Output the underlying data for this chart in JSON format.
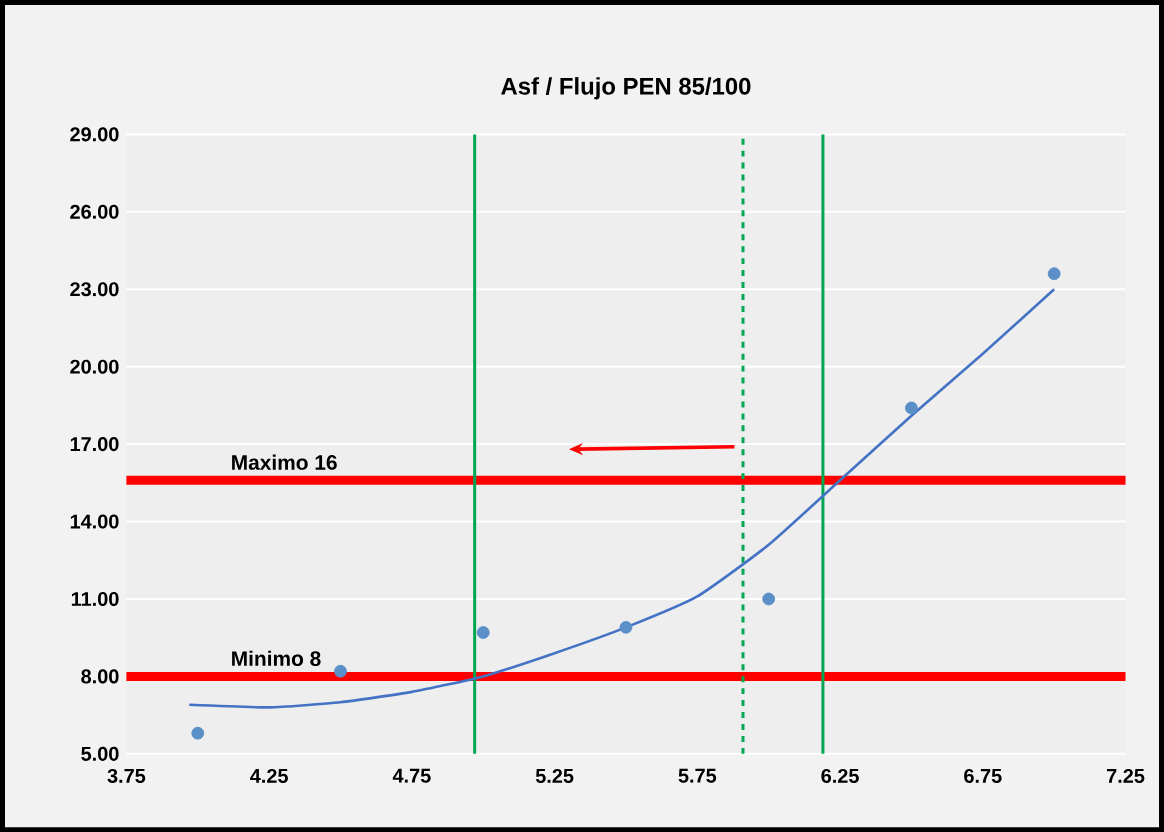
{
  "chart_data": {
    "type": "scatter",
    "title": "Asf / Flujo     PEN  85/100",
    "series": [
      {
        "color": "#5b8fc7",
        "x": [
          4.0,
          4.5,
          5.0,
          5.5,
          6.0,
          6.5,
          7.0
        ],
        "values": [
          5.8,
          8.2,
          9.7,
          9.9,
          11.0,
          18.4,
          23.6
        ],
        "marker": "circle"
      },
      {
        "type": "line",
        "color": "#4472c4",
        "x": [
          3.97,
          4.25,
          4.5,
          4.75,
          5.0,
          5.25,
          5.5,
          5.75,
          6.0,
          6.25,
          6.5,
          6.75,
          7.0
        ],
        "values": [
          6.9,
          6.8,
          7.0,
          7.4,
          8.0,
          8.9,
          9.9,
          11.1,
          13.1,
          15.6,
          18.1,
          20.5,
          23.0
        ],
        "marker": "none"
      }
    ],
    "ref_lines": [
      {
        "axis": "y",
        "value": 15.6,
        "label": "Maximo 16",
        "color": "#ff0000"
      },
      {
        "axis": "y",
        "value": 8.0,
        "label": "Minimo 8",
        "color": "#ff0000"
      },
      {
        "axis": "x",
        "value": 4.97,
        "color": "#00a651"
      },
      {
        "axis": "x",
        "value": 5.91,
        "color": "#00a651",
        "line_style": "dashed"
      },
      {
        "axis": "x",
        "value": 6.19,
        "color": "#00a651"
      }
    ],
    "xlim": [
      3.75,
      7.25
    ],
    "xticks": [
      {
        "value": 3.75,
        "label": "3.75"
      },
      {
        "value": 4.25,
        "label": "4.25"
      },
      {
        "value": 4.75,
        "label": "4.75"
      },
      {
        "value": 5.25,
        "label": "5.25"
      },
      {
        "value": 5.75,
        "label": "5.75"
      },
      {
        "value": 6.25,
        "label": "6.25"
      },
      {
        "value": 6.75,
        "label": "6.75"
      },
      {
        "value": 7.25,
        "label": "7.25"
      }
    ],
    "ylim": [
      5,
      29
    ],
    "yticks": [
      {
        "value": 5,
        "label": "5.00"
      },
      {
        "value": 8,
        "label": "8.00"
      },
      {
        "value": 11,
        "label": "11.00"
      },
      {
        "value": 14,
        "label": "14.00"
      },
      {
        "value": 17,
        "label": "17.00"
      },
      {
        "value": 20,
        "label": "20.00"
      },
      {
        "value": 23,
        "label": "23.00"
      },
      {
        "value": 26,
        "label": "26.00"
      },
      {
        "value": 29,
        "label": "29.00"
      }
    ],
    "grid": "y"
  }
}
